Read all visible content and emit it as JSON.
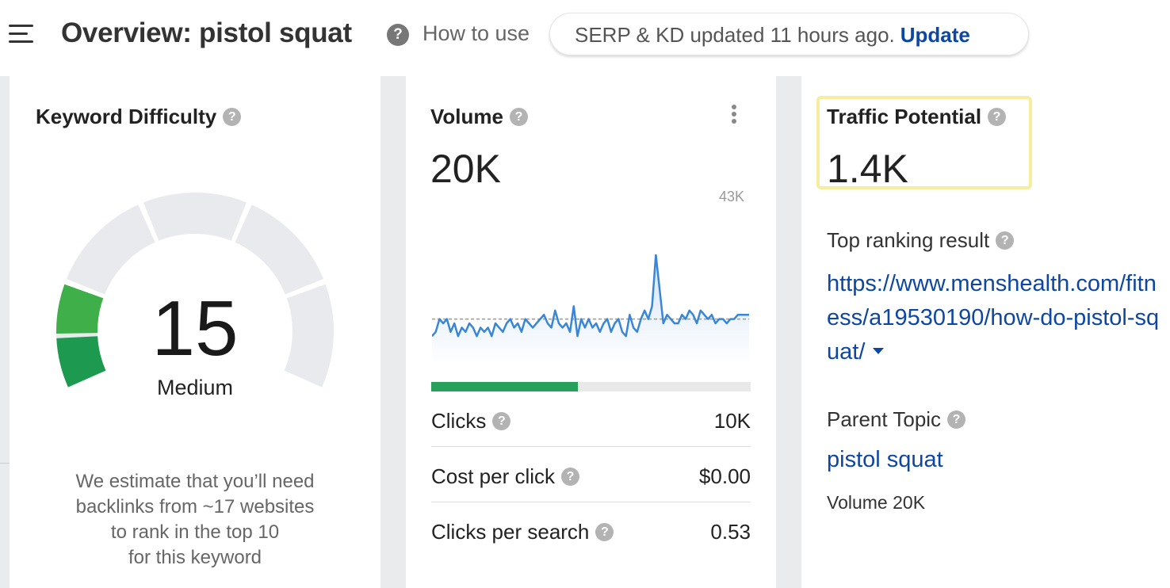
{
  "header": {
    "title": "Overview: pistol squat",
    "help_icon": "?",
    "how_to_use": "How to use",
    "serp_status": "SERP & KD updated 11 hours ago.",
    "update_label": "Update"
  },
  "keyword_difficulty": {
    "title": "Keyword Difficulty",
    "score": "15",
    "score_value": 15,
    "level": "Medium",
    "note_lines": [
      "We estimate that you’ll need",
      "backlinks from ~17 websites",
      "to rank in the top 10",
      "for this keyword"
    ],
    "colors": {
      "filled": "#1d9a50",
      "empty": "#e8eaed"
    }
  },
  "volume": {
    "title": "Volume",
    "value": "20K",
    "chart_max_label": "43K",
    "clicks_share": 0.46,
    "stats": [
      {
        "label": "Clicks",
        "value": "10K"
      },
      {
        "label": "Cost per click",
        "value": "$0.00"
      },
      {
        "label": "Clicks per search",
        "value": "0.53"
      }
    ],
    "colors": {
      "line": "#3a86d6",
      "bar": "#27a05c"
    }
  },
  "traffic_potential": {
    "title": "Traffic Potential",
    "value": "1.4K",
    "top_result_title": "Top ranking result",
    "top_result_url": "https://www.menshealth.com/fitness/a19530190/how-do-pistol-squat/",
    "parent_topic_title": "Parent Topic",
    "parent_topic": "pistol squat",
    "parent_volume": "Volume 20K",
    "colors": {
      "highlight": "#f6ed9e",
      "link": "#0d47a1"
    }
  },
  "chart_data": {
    "type": "line",
    "series": [
      {
        "values": [
          17,
          18,
          21,
          20,
          21,
          18,
          20,
          17,
          19,
          18,
          20,
          19,
          17,
          19,
          18,
          19,
          17,
          20,
          19,
          18,
          20,
          21,
          19,
          20,
          18,
          21,
          20,
          19,
          20,
          21,
          22,
          20,
          19,
          23,
          20,
          19,
          20,
          18,
          24,
          17,
          21,
          19,
          21,
          19,
          20,
          18,
          20,
          21,
          18,
          20,
          21,
          18,
          17,
          22,
          19,
          18,
          21,
          23,
          21,
          24,
          36,
          28,
          20,
          22,
          21,
          20,
          20,
          22,
          21,
          23,
          22,
          20,
          23,
          22,
          21,
          22,
          20,
          21,
          21,
          20,
          21,
          21,
          22,
          22,
          22,
          22
        ]
      }
    ],
    "average": 21,
    "ylim": [
      0,
      43
    ]
  }
}
